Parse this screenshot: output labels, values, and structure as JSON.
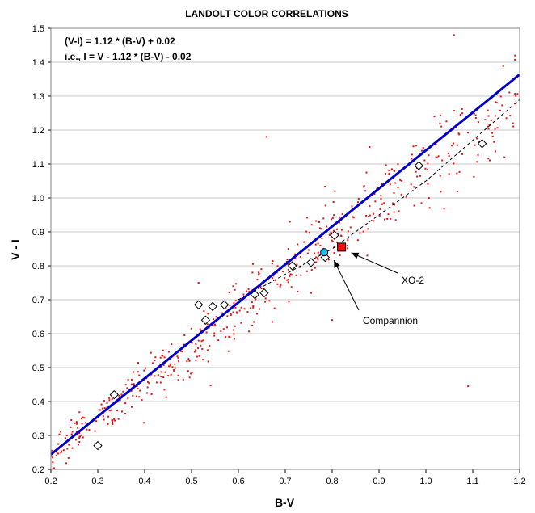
{
  "chart_data": {
    "type": "scatter",
    "title": "LANDOLT COLOR CORRELATIONS",
    "xlabel": "B-V",
    "ylabel": "V - I",
    "xlim": [
      0.2,
      1.2
    ],
    "ylim": [
      0.2,
      1.5
    ],
    "x_ticks": [
      "0.2",
      "0.3",
      "0.4",
      "0.5",
      "0.6",
      "0.7",
      "0.8",
      "0.9",
      "1.0",
      "1.1",
      "1.2"
    ],
    "y_ticks": [
      "0.2",
      "0.3",
      "0.4",
      "0.5",
      "0.6",
      "0.7",
      "0.8",
      "0.9",
      "1.0",
      "1.1",
      "1.2",
      "1.3",
      "1.4",
      "1.5"
    ],
    "grid": "horizontal",
    "equation_lines": [
      "(V-I) = 1.12 * (B-V) + 0.02",
      "i.e., I = V - 1.12 * (B-V) - 0.02"
    ],
    "colors": {
      "stars": "#ee1111",
      "fit_line": "#0000cc",
      "dashed_line": "#000000",
      "xo2": "#ee1111",
      "companion": "#22bbee"
    },
    "fit_line": {
      "slope": 1.12,
      "intercept": 0.02
    },
    "dashed_line": {
      "points": [
        [
          0.6,
          0.7
        ],
        [
          0.8,
          0.85
        ],
        [
          1.0,
          1.05
        ],
        [
          1.2,
          1.29
        ]
      ]
    },
    "diamonds": {
      "x": [
        0.3,
        0.335,
        0.515,
        0.53,
        0.545,
        0.57,
        0.635,
        0.655,
        0.715,
        0.755,
        0.785,
        0.805,
        0.985,
        1.12
      ],
      "y": [
        0.27,
        0.42,
        0.685,
        0.64,
        0.68,
        0.685,
        0.715,
        0.72,
        0.8,
        0.81,
        0.825,
        0.89,
        1.095,
        1.16
      ]
    },
    "xo2": {
      "x": 0.82,
      "y": 0.855
    },
    "companion": {
      "x": 0.783,
      "y": 0.84
    },
    "annotations": {
      "xo2_label": "XO-2",
      "companion_label": "Compannion"
    },
    "star_count": 560,
    "outliers": {
      "x": [
        0.63,
        0.66,
        0.71,
        0.74,
        0.8,
        1.06,
        1.09,
        1.19,
        0.83,
        0.755,
        0.515,
        0.88
      ],
      "y": [
        0.78,
        1.18,
        0.93,
        0.87,
        0.64,
        1.48,
        0.445,
        1.42,
        0.95,
        0.72,
        0.75,
        1.15
      ]
    }
  }
}
